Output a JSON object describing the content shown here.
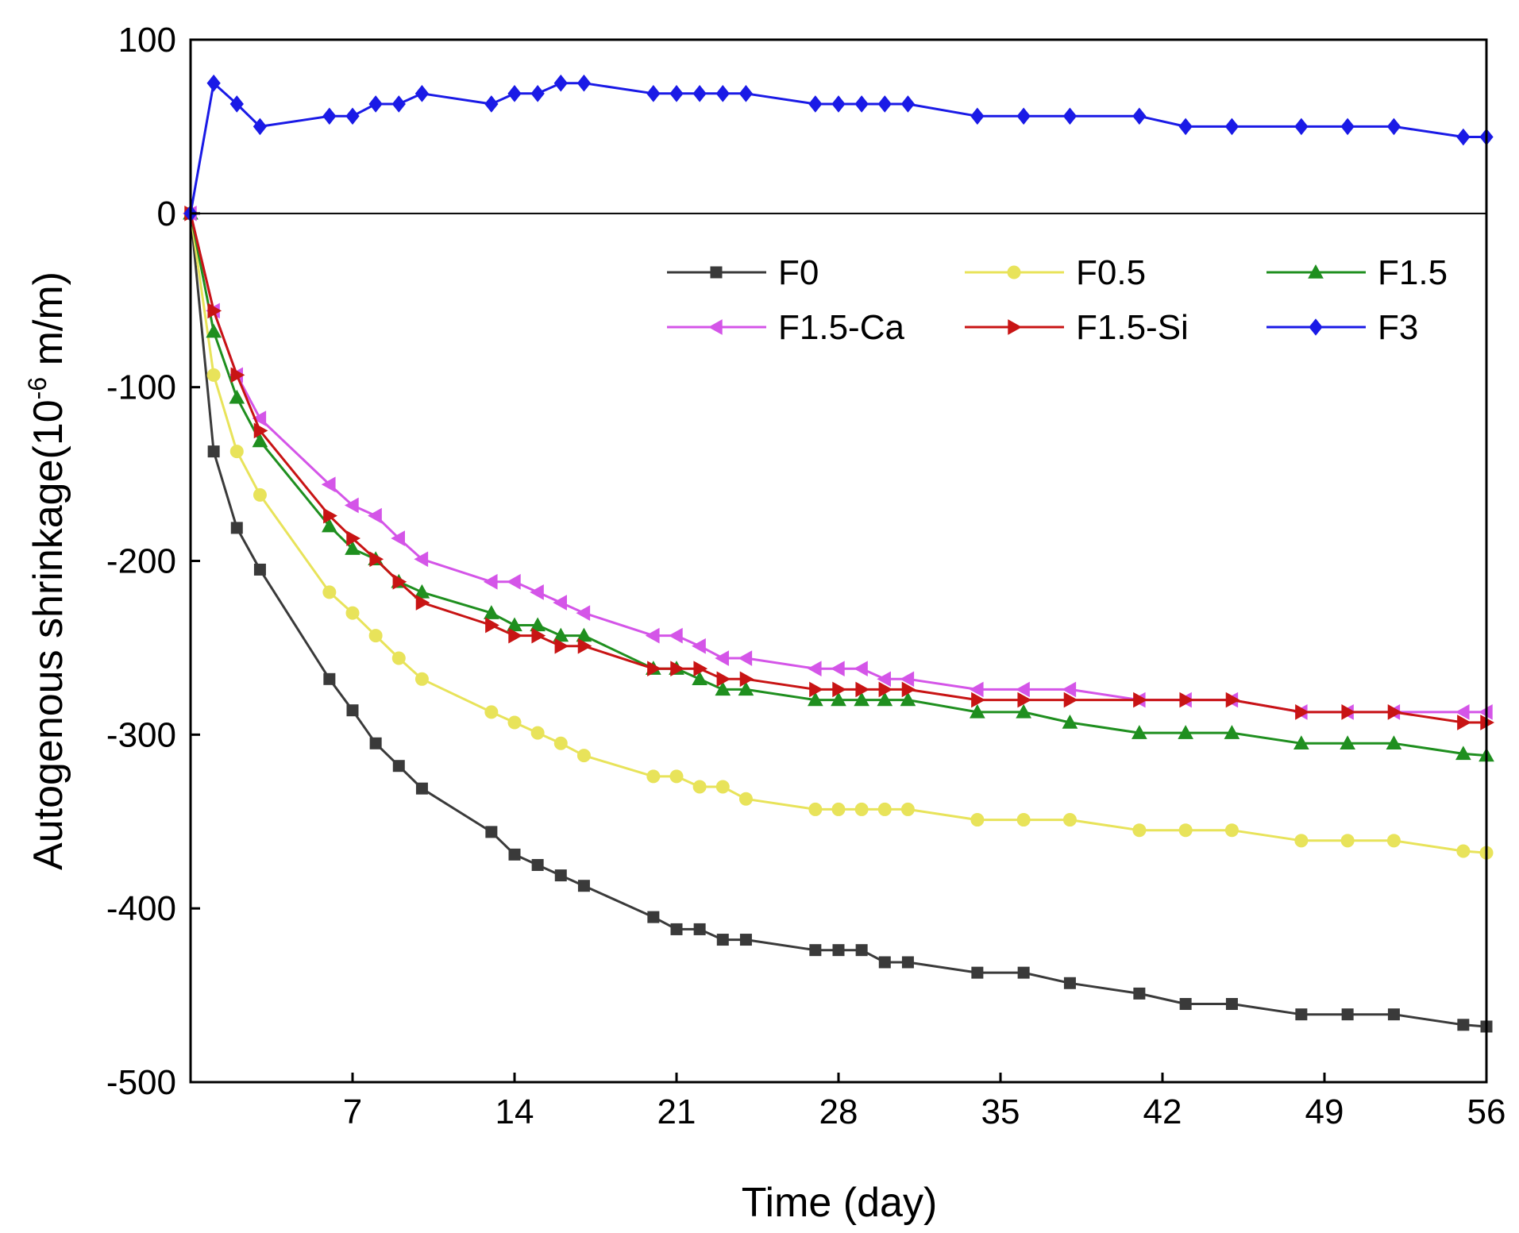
{
  "chart_data": {
    "type": "line",
    "xlabel": "Time (day)",
    "ylabel_main": "Autogenous shrinkage(10",
    "ylabel_sup": "-6",
    "ylabel_tail": " m/m)",
    "xlim": [
      0,
      56
    ],
    "ylim": [
      -500,
      100
    ],
    "xticks": [
      7,
      14,
      21,
      28,
      35,
      42,
      49,
      56
    ],
    "yticks": [
      100,
      0,
      -100,
      -200,
      -300,
      -400,
      -500
    ],
    "zero_line": true,
    "legend_position": "inside upper center",
    "series": [
      {
        "name": "F0",
        "color": "#3a3a3a",
        "marker": "square",
        "x": [
          0,
          1,
          2,
          3,
          6,
          7,
          8,
          9,
          10,
          13,
          14,
          15,
          16,
          17,
          20,
          21,
          22,
          23,
          24,
          27,
          28,
          29,
          30,
          31,
          34,
          36,
          38,
          41,
          43,
          45,
          48,
          50,
          52,
          55,
          56
        ],
        "y": [
          0,
          -137,
          -181,
          -205,
          -268,
          -286,
          -305,
          -318,
          -331,
          -356,
          -369,
          -375,
          -381,
          -387,
          -405,
          -412,
          -412,
          -418,
          -418,
          -424,
          -424,
          -424,
          -431,
          -431,
          -437,
          -437,
          -443,
          -449,
          -455,
          -455,
          -461,
          -461,
          -461,
          -467,
          -468
        ]
      },
      {
        "name": "F0.5",
        "color": "#e8e35a",
        "marker": "circle",
        "x": [
          0,
          1,
          2,
          3,
          6,
          7,
          8,
          9,
          10,
          13,
          14,
          15,
          16,
          17,
          20,
          21,
          22,
          23,
          24,
          27,
          28,
          29,
          30,
          31,
          34,
          36,
          38,
          41,
          43,
          45,
          48,
          50,
          52,
          55,
          56
        ],
        "y": [
          0,
          -93,
          -137,
          -162,
          -218,
          -230,
          -243,
          -256,
          -268,
          -287,
          -293,
          -299,
          -305,
          -312,
          -324,
          -324,
          -330,
          -330,
          -337,
          -343,
          -343,
          -343,
          -343,
          -343,
          -349,
          -349,
          -349,
          -355,
          -355,
          -355,
          -361,
          -361,
          -361,
          -367,
          -368
        ]
      },
      {
        "name": "F1.5",
        "color": "#1f8f1f",
        "marker": "triangle-up",
        "x": [
          0,
          1,
          2,
          3,
          6,
          7,
          8,
          9,
          10,
          13,
          14,
          15,
          16,
          17,
          20,
          21,
          22,
          23,
          24,
          27,
          28,
          29,
          30,
          31,
          34,
          36,
          38,
          41,
          43,
          45,
          48,
          50,
          52,
          55,
          56
        ],
        "y": [
          0,
          -68,
          -106,
          -131,
          -180,
          -193,
          -199,
          -212,
          -218,
          -230,
          -237,
          -237,
          -243,
          -243,
          -262,
          -262,
          -268,
          -274,
          -274,
          -280,
          -280,
          -280,
          -280,
          -280,
          -287,
          -287,
          -293,
          -299,
          -299,
          -299,
          -305,
          -305,
          -305,
          -311,
          -312
        ]
      },
      {
        "name": "F1.5-Ca",
        "color": "#d455e8",
        "marker": "triangle-left",
        "x": [
          0,
          1,
          2,
          3,
          6,
          7,
          8,
          9,
          10,
          13,
          14,
          15,
          16,
          17,
          20,
          21,
          22,
          23,
          24,
          27,
          28,
          29,
          30,
          31,
          34,
          36,
          38,
          41,
          43,
          45,
          48,
          50,
          52,
          55,
          56
        ],
        "y": [
          0,
          -56,
          -93,
          -118,
          -156,
          -168,
          -174,
          -187,
          -199,
          -212,
          -212,
          -218,
          -224,
          -230,
          -243,
          -243,
          -249,
          -256,
          -256,
          -262,
          -262,
          -262,
          -268,
          -268,
          -274,
          -274,
          -274,
          -280,
          -280,
          -280,
          -287,
          -287,
          -287,
          -287,
          -287
        ]
      },
      {
        "name": " F1.5-Si",
        "color": "#c81414",
        "marker": "triangle-right",
        "x": [
          0,
          1,
          2,
          3,
          6,
          7,
          8,
          9,
          10,
          13,
          14,
          15,
          16,
          17,
          20,
          21,
          22,
          23,
          24,
          27,
          28,
          29,
          30,
          31,
          34,
          36,
          38,
          41,
          43,
          45,
          48,
          50,
          52,
          55,
          56
        ],
        "y": [
          0,
          -56,
          -93,
          -125,
          -174,
          -187,
          -199,
          -212,
          -224,
          -237,
          -243,
          -243,
          -249,
          -249,
          -262,
          -262,
          -262,
          -268,
          -268,
          -274,
          -274,
          -274,
          -274,
          -274,
          -280,
          -280,
          -280,
          -280,
          -280,
          -280,
          -287,
          -287,
          -287,
          -293,
          -293
        ]
      },
      {
        "name": "F3",
        "color": "#1a1ae6",
        "marker": "diamond",
        "x": [
          0,
          1,
          2,
          3,
          6,
          7,
          8,
          9,
          10,
          13,
          14,
          15,
          16,
          17,
          20,
          21,
          22,
          23,
          24,
          27,
          28,
          29,
          30,
          31,
          34,
          36,
          38,
          41,
          43,
          45,
          48,
          50,
          52,
          55,
          56
        ],
        "y": [
          0,
          75,
          63,
          50,
          56,
          56,
          63,
          63,
          69,
          63,
          69,
          69,
          75,
          75,
          69,
          69,
          69,
          69,
          69,
          63,
          63,
          63,
          63,
          63,
          56,
          56,
          56,
          56,
          50,
          50,
          50,
          50,
          50,
          44,
          44
        ]
      }
    ]
  }
}
